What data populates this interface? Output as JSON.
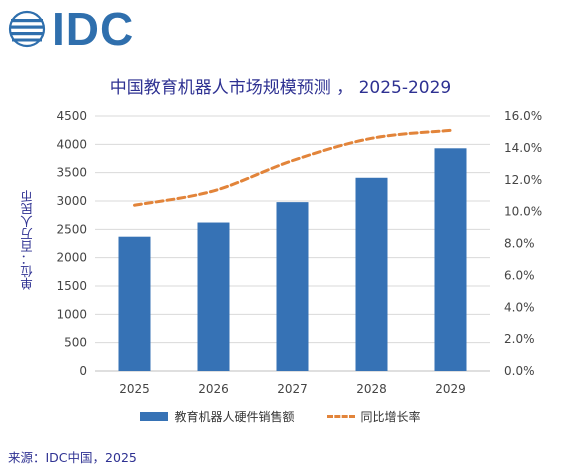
{
  "logo": {
    "text": "IDC",
    "color": "#2f6fad"
  },
  "title": "中国教育机器人市场规模预测 ， 2025-2029",
  "source": "来源：IDC中国，2025",
  "chart_data": {
    "type": "bar",
    "title": "中国教育机器人市场规模预测 ， 2025-2029",
    "categories": [
      "2025",
      "2026",
      "2027",
      "2028",
      "2029"
    ],
    "series": [
      {
        "name": "教育机器人硬件销售额",
        "type": "bar",
        "axis": "left",
        "color": "#3672b5",
        "values": [
          2370,
          2620,
          2980,
          3410,
          3930
        ]
      },
      {
        "name": "同比增长率",
        "type": "line",
        "style": "dashed",
        "axis": "right",
        "color": "#e2843a",
        "values": [
          10.4,
          11.3,
          13.2,
          14.6,
          15.1
        ]
      }
    ],
    "ylabel": "单位：百万人民币",
    "ylim": [
      0,
      4500
    ],
    "yticks": [
      "0",
      "500",
      "1000",
      "1500",
      "2000",
      "2500",
      "3000",
      "3500",
      "4000",
      "4500"
    ],
    "y2lim": [
      0,
      16
    ],
    "y2ticks": [
      "0.0%",
      "2.0%",
      "4.0%",
      "6.0%",
      "8.0%",
      "10.0%",
      "12.0%",
      "14.0%",
      "16.0%"
    ],
    "grid": true,
    "legend_position": "bottom"
  }
}
